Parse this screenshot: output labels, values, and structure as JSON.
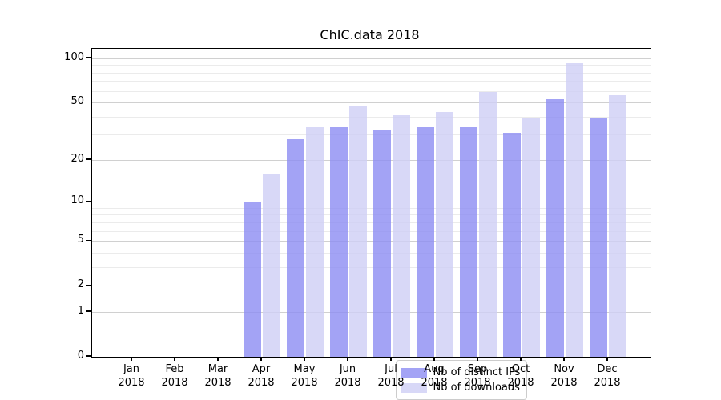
{
  "chart_data": {
    "type": "bar",
    "title": "ChIC.data 2018",
    "categories": [
      "Jan",
      "Feb",
      "Mar",
      "Apr",
      "May",
      "Jun",
      "Jul",
      "Aug",
      "Sep",
      "Oct",
      "Nov",
      "Dec"
    ],
    "year_label": "2018",
    "series": [
      {
        "name": "Nb of distinct IPs",
        "color": "rgba(140,140,242,0.8)",
        "values": [
          0,
          0,
          0,
          10,
          28,
          34,
          32,
          34,
          34,
          31,
          53,
          39
        ]
      },
      {
        "name": "Nb of downloads",
        "color": "rgba(206,206,245,0.8)",
        "values": [
          0,
          0,
          0,
          16,
          34,
          47,
          41,
          43,
          59,
          39,
          93,
          56
        ]
      }
    ],
    "yscale": "log1p",
    "yticks": [
      0,
      1,
      2,
      5,
      10,
      20,
      50,
      100
    ],
    "minor_gridlines": [
      3,
      4,
      6,
      7,
      8,
      9,
      30,
      40,
      60,
      70,
      80,
      90
    ],
    "ylim": [
      0,
      116
    ],
    "grid": true,
    "legend_position": "lower center"
  },
  "colors": {
    "bar_distinct_ips": "rgba(140,140,242,0.8)",
    "bar_downloads": "rgba(206,206,245,0.8)",
    "major_grid": "#d0d0d0",
    "minor_grid": "#ebebeb",
    "axis": "#000000",
    "legend_bg": "rgba(255,255,255,0.8)",
    "legend_border": "#cccccc"
  }
}
